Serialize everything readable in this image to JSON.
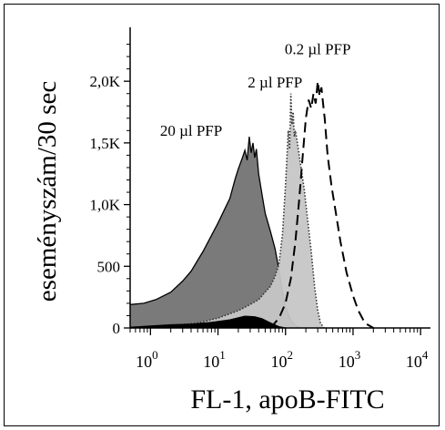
{
  "chart_data": {
    "type": "area",
    "xlabel": "FL-1, apoB-FITC",
    "ylabel": "eseményszám/30 sec",
    "x_scale": "log",
    "xlim": [
      0.5,
      14000
    ],
    "ylim": [
      0,
      2400
    ],
    "x_ticks": [
      {
        "value": 1,
        "base": "10",
        "exp": "0"
      },
      {
        "value": 10,
        "base": "10",
        "exp": "1"
      },
      {
        "value": 100,
        "base": "10",
        "exp": "2"
      },
      {
        "value": 1000,
        "base": "10",
        "exp": "3"
      },
      {
        "value": 10000,
        "base": "10",
        "exp": "4"
      }
    ],
    "y_ticks": [
      {
        "value": 0,
        "label": "0"
      },
      {
        "value": 500,
        "label": "500"
      },
      {
        "value": 1000,
        "label": "1,0K"
      },
      {
        "value": 1500,
        "label": "1,5K"
      },
      {
        "value": 2000,
        "label": "2,0K"
      }
    ],
    "series": [
      {
        "name": "20 µl PFP",
        "style": "filled-dark-gray",
        "fill": "#7a7a7a",
        "stroke": "#000000",
        "x": [
          0.5,
          0.8,
          1.2,
          2,
          3,
          4,
          6,
          8,
          10,
          12,
          15,
          18,
          20,
          23,
          25,
          27,
          29,
          31,
          33,
          35,
          37,
          40,
          45,
          50,
          60,
          70,
          80,
          90,
          100,
          120,
          140,
          170
        ],
        "y": [
          190,
          200,
          230,
          290,
          380,
          460,
          620,
          750,
          850,
          940,
          1050,
          1210,
          1290,
          1380,
          1440,
          1360,
          1550,
          1420,
          1500,
          1380,
          1450,
          1250,
          1080,
          930,
          780,
          640,
          470,
          290,
          170,
          60,
          20,
          0
        ]
      },
      {
        "name": "2 µl PFP",
        "style": "filled-light-gray-dotted",
        "fill": "#c6c6c6",
        "stroke": "#333333",
        "x": [
          0.5,
          2,
          5,
          10,
          20,
          30,
          40,
          50,
          60,
          70,
          80,
          90,
          100,
          110,
          115,
          120,
          125,
          130,
          135,
          140,
          150,
          170,
          190,
          210,
          240,
          270,
          300,
          330,
          370
        ],
        "y": [
          0,
          20,
          40,
          80,
          140,
          190,
          230,
          290,
          340,
          420,
          520,
          760,
          1150,
          1600,
          1450,
          1900,
          1650,
          1750,
          1550,
          1600,
          1500,
          1300,
          1120,
          900,
          620,
          330,
          140,
          40,
          0
        ]
      },
      {
        "name": "0.2 µl PFP",
        "style": "dashed-line",
        "stroke": "#000000",
        "x": [
          60,
          80,
          100,
          120,
          140,
          160,
          180,
          200,
          220,
          240,
          260,
          280,
          300,
          320,
          340,
          360,
          380,
          420,
          480,
          550,
          650,
          800,
          1000,
          1200,
          1500,
          2000
        ],
        "y": [
          0,
          80,
          200,
          400,
          700,
          1050,
          1400,
          1700,
          1850,
          1780,
          1900,
          1820,
          2000,
          1880,
          1950,
          1820,
          1700,
          1400,
          1150,
          950,
          700,
          450,
          260,
          140,
          40,
          0
        ]
      },
      {
        "name": "",
        "style": "filled-black",
        "fill": "#000000",
        "x": [
          0.5,
          1,
          2,
          4,
          8,
          15,
          25,
          35,
          45,
          60,
          80,
          110
        ],
        "y": [
          10,
          20,
          30,
          35,
          50,
          70,
          100,
          95,
          80,
          45,
          15,
          0
        ]
      }
    ],
    "annotations": [
      {
        "text": "0.2 µl PFP",
        "anchor_x": 300,
        "anchor_y": 2220
      },
      {
        "text": "2 µl PFP",
        "anchor_x": 70,
        "anchor_y": 1950
      },
      {
        "text": "20 µl PFP",
        "anchor_x": 4,
        "anchor_y": 1560
      }
    ],
    "grid": false,
    "legend": "none"
  }
}
